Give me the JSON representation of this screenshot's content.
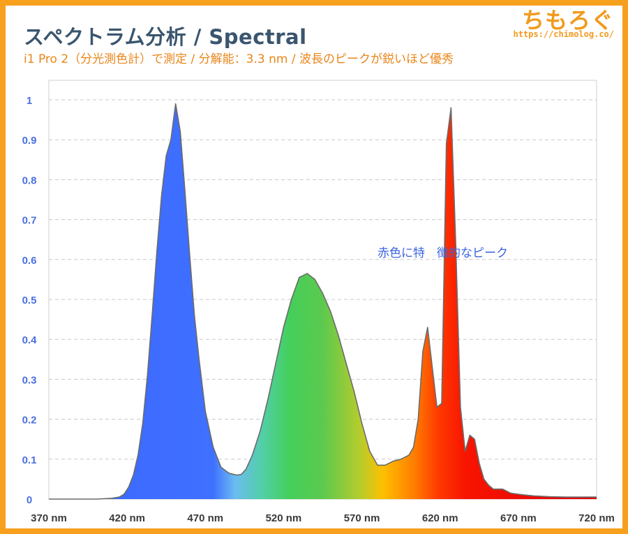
{
  "header": {
    "title": "スペクトラム分析 / Spectral",
    "subtitle": "i1 Pro 2（分光測色計）で測定 / 分解能：3.3 nm / 波長のピークが鋭いほど優秀"
  },
  "logo": {
    "text": "ちもろぐ",
    "url": "https://chimolog.co/"
  },
  "colors": {
    "frame": "#f6a01e",
    "title": "#3a556e",
    "subtitle": "#e8861a",
    "axis_label": "#4a6fe0",
    "annotation": "#3b63e0"
  },
  "chart_data": {
    "type": "area",
    "title": "スペクトラム分析 / Spectral",
    "xlabel": "",
    "ylabel": "",
    "xlim": [
      370,
      720
    ],
    "ylim": [
      0,
      1
    ],
    "x_ticks": [
      "370 nm",
      "420 nm",
      "470 nm",
      "520 nm",
      "570 nm",
      "620 nm",
      "670 nm",
      "720 nm"
    ],
    "y_ticks": [
      "0",
      "0.1",
      "0.2",
      "0.3",
      "0.4",
      "0.5",
      "0.6",
      "0.7",
      "0.8",
      "0.9",
      "1"
    ],
    "grid": true,
    "annotation": "赤色に特　徴的なピーク",
    "series": [
      {
        "x": [
          370,
          380,
          390,
          400,
          410,
          415,
          418,
          421,
          424,
          427,
          430,
          433,
          436,
          439,
          442,
          445,
          448,
          451,
          454,
          457,
          460,
          463,
          466,
          470,
          475,
          480,
          485,
          490,
          493,
          496,
          500,
          505,
          510,
          515,
          520,
          525,
          530,
          535,
          540,
          545,
          550,
          555,
          560,
          565,
          570,
          575,
          580,
          585,
          590,
          595,
          600,
          603,
          606,
          609,
          612,
          615,
          618,
          621,
          624,
          627,
          630,
          633,
          636,
          639,
          642,
          645,
          648,
          651,
          654,
          657,
          660,
          665,
          670,
          675,
          680,
          690,
          700,
          710,
          720
        ],
        "y": [
          0,
          0,
          0,
          0,
          0.002,
          0.005,
          0.012,
          0.03,
          0.06,
          0.11,
          0.19,
          0.31,
          0.46,
          0.62,
          0.76,
          0.86,
          0.9,
          0.99,
          0.92,
          0.77,
          0.61,
          0.46,
          0.35,
          0.22,
          0.13,
          0.08,
          0.065,
          0.06,
          0.062,
          0.075,
          0.11,
          0.17,
          0.25,
          0.34,
          0.43,
          0.5,
          0.555,
          0.565,
          0.55,
          0.515,
          0.47,
          0.41,
          0.34,
          0.27,
          0.19,
          0.12,
          0.085,
          0.085,
          0.095,
          0.1,
          0.11,
          0.13,
          0.2,
          0.37,
          0.43,
          0.33,
          0.23,
          0.24,
          0.89,
          0.98,
          0.64,
          0.23,
          0.12,
          0.16,
          0.15,
          0.09,
          0.05,
          0.035,
          0.025,
          0.025,
          0.025,
          0.015,
          0.012,
          0.01,
          0.008,
          0.006,
          0.005,
          0.005,
          0.005
        ]
      }
    ]
  }
}
